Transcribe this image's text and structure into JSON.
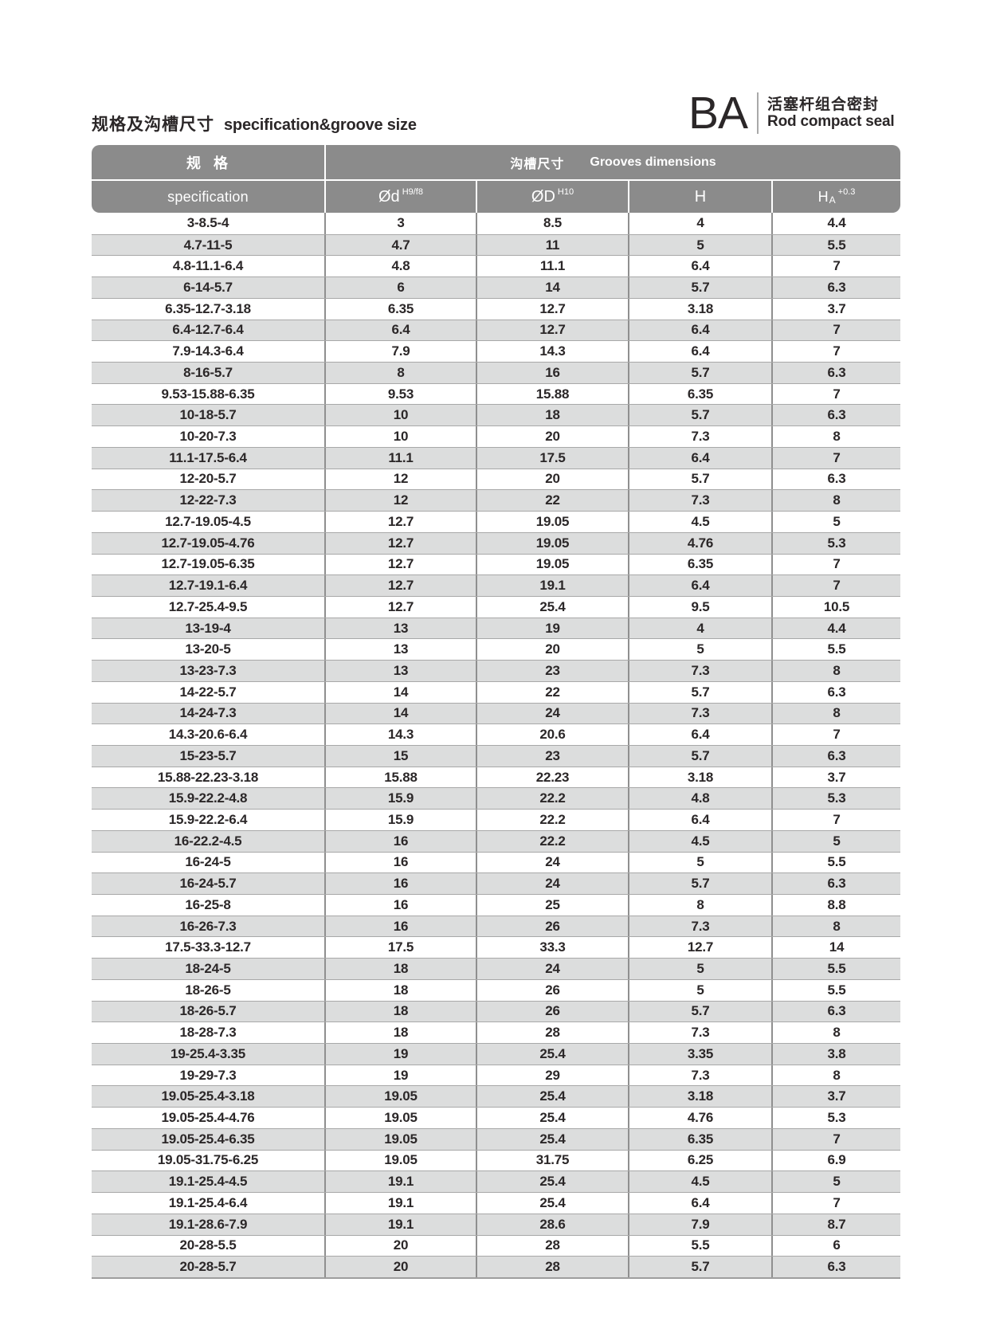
{
  "page": {
    "title_zh": "规格及沟槽尺寸",
    "title_en": "specification&groove size"
  },
  "brand": {
    "code": "BA",
    "name_zh": "活塞杆组合密封",
    "name_en": "Rod compact seal"
  },
  "table": {
    "header": {
      "spec_zh": "规  格",
      "spec_en": "specification",
      "grooves_zh": "沟槽尺寸",
      "grooves_en": "Grooves dimensions",
      "columns": [
        {
          "base": "Ød",
          "sup": "H9/f8"
        },
        {
          "base": "ØD",
          "sup": "H10"
        },
        {
          "base": "H",
          "sup": ""
        },
        {
          "base": "H",
          "sub": "A",
          "sup": "+0.3"
        }
      ]
    },
    "rows": [
      [
        "3-8.5-4",
        "3",
        "8.5",
        "4",
        "4.4"
      ],
      [
        "4.7-11-5",
        "4.7",
        "11",
        "5",
        "5.5"
      ],
      [
        "4.8-11.1-6.4",
        "4.8",
        "11.1",
        "6.4",
        "7"
      ],
      [
        "6-14-5.7",
        "6",
        "14",
        "5.7",
        "6.3"
      ],
      [
        "6.35-12.7-3.18",
        "6.35",
        "12.7",
        "3.18",
        "3.7"
      ],
      [
        "6.4-12.7-6.4",
        "6.4",
        "12.7",
        "6.4",
        "7"
      ],
      [
        "7.9-14.3-6.4",
        "7.9",
        "14.3",
        "6.4",
        "7"
      ],
      [
        "8-16-5.7",
        "8",
        "16",
        "5.7",
        "6.3"
      ],
      [
        "9.53-15.88-6.35",
        "9.53",
        "15.88",
        "6.35",
        "7"
      ],
      [
        "10-18-5.7",
        "10",
        "18",
        "5.7",
        "6.3"
      ],
      [
        "10-20-7.3",
        "10",
        "20",
        "7.3",
        "8"
      ],
      [
        "11.1-17.5-6.4",
        "11.1",
        "17.5",
        "6.4",
        "7"
      ],
      [
        "12-20-5.7",
        "12",
        "20",
        "5.7",
        "6.3"
      ],
      [
        "12-22-7.3",
        "12",
        "22",
        "7.3",
        "8"
      ],
      [
        "12.7-19.05-4.5",
        "12.7",
        "19.05",
        "4.5",
        "5"
      ],
      [
        "12.7-19.05-4.76",
        "12.7",
        "19.05",
        "4.76",
        "5.3"
      ],
      [
        "12.7-19.05-6.35",
        "12.7",
        "19.05",
        "6.35",
        "7"
      ],
      [
        "12.7-19.1-6.4",
        "12.7",
        "19.1",
        "6.4",
        "7"
      ],
      [
        "12.7-25.4-9.5",
        "12.7",
        "25.4",
        "9.5",
        "10.5"
      ],
      [
        "13-19-4",
        "13",
        "19",
        "4",
        "4.4"
      ],
      [
        "13-20-5",
        "13",
        "20",
        "5",
        "5.5"
      ],
      [
        "13-23-7.3",
        "13",
        "23",
        "7.3",
        "8"
      ],
      [
        "14-22-5.7",
        "14",
        "22",
        "5.7",
        "6.3"
      ],
      [
        "14-24-7.3",
        "14",
        "24",
        "7.3",
        "8"
      ],
      [
        "14.3-20.6-6.4",
        "14.3",
        "20.6",
        "6.4",
        "7"
      ],
      [
        "15-23-5.7",
        "15",
        "23",
        "5.7",
        "6.3"
      ],
      [
        "15.88-22.23-3.18",
        "15.88",
        "22.23",
        "3.18",
        "3.7"
      ],
      [
        "15.9-22.2-4.8",
        "15.9",
        "22.2",
        "4.8",
        "5.3"
      ],
      [
        "15.9-22.2-6.4",
        "15.9",
        "22.2",
        "6.4",
        "7"
      ],
      [
        "16-22.2-4.5",
        "16",
        "22.2",
        "4.5",
        "5"
      ],
      [
        "16-24-5",
        "16",
        "24",
        "5",
        "5.5"
      ],
      [
        "16-24-5.7",
        "16",
        "24",
        "5.7",
        "6.3"
      ],
      [
        "16-25-8",
        "16",
        "25",
        "8",
        "8.8"
      ],
      [
        "16-26-7.3",
        "16",
        "26",
        "7.3",
        "8"
      ],
      [
        "17.5-33.3-12.7",
        "17.5",
        "33.3",
        "12.7",
        "14"
      ],
      [
        "18-24-5",
        "18",
        "24",
        "5",
        "5.5"
      ],
      [
        "18-26-5",
        "18",
        "26",
        "5",
        "5.5"
      ],
      [
        "18-26-5.7",
        "18",
        "26",
        "5.7",
        "6.3"
      ],
      [
        "18-28-7.3",
        "18",
        "28",
        "7.3",
        "8"
      ],
      [
        "19-25.4-3.35",
        "19",
        "25.4",
        "3.35",
        "3.8"
      ],
      [
        "19-29-7.3",
        "19",
        "29",
        "7.3",
        "8"
      ],
      [
        "19.05-25.4-3.18",
        "19.05",
        "25.4",
        "3.18",
        "3.7"
      ],
      [
        "19.05-25.4-4.76",
        "19.05",
        "25.4",
        "4.76",
        "5.3"
      ],
      [
        "19.05-25.4-6.35",
        "19.05",
        "25.4",
        "6.35",
        "7"
      ],
      [
        "19.05-31.75-6.25",
        "19.05",
        "31.75",
        "6.25",
        "6.9"
      ],
      [
        "19.1-25.4-4.5",
        "19.1",
        "25.4",
        "4.5",
        "5"
      ],
      [
        "19.1-25.4-6.4",
        "19.1",
        "25.4",
        "6.4",
        "7"
      ],
      [
        "19.1-28.6-7.9",
        "19.1",
        "28.6",
        "7.9",
        "8.7"
      ],
      [
        "20-28-5.5",
        "20",
        "28",
        "5.5",
        "6"
      ],
      [
        "20-28-5.7",
        "20",
        "28",
        "5.7",
        "6.3"
      ]
    ]
  },
  "colors": {
    "header_bg": "#8b8b8b",
    "row_alt_bg": "#dcdddd",
    "text_dark": "#2b2728",
    "header_text": "#ffffff",
    "grid_line": "#8f8f8f",
    "row_line": "#a8a8a8"
  }
}
